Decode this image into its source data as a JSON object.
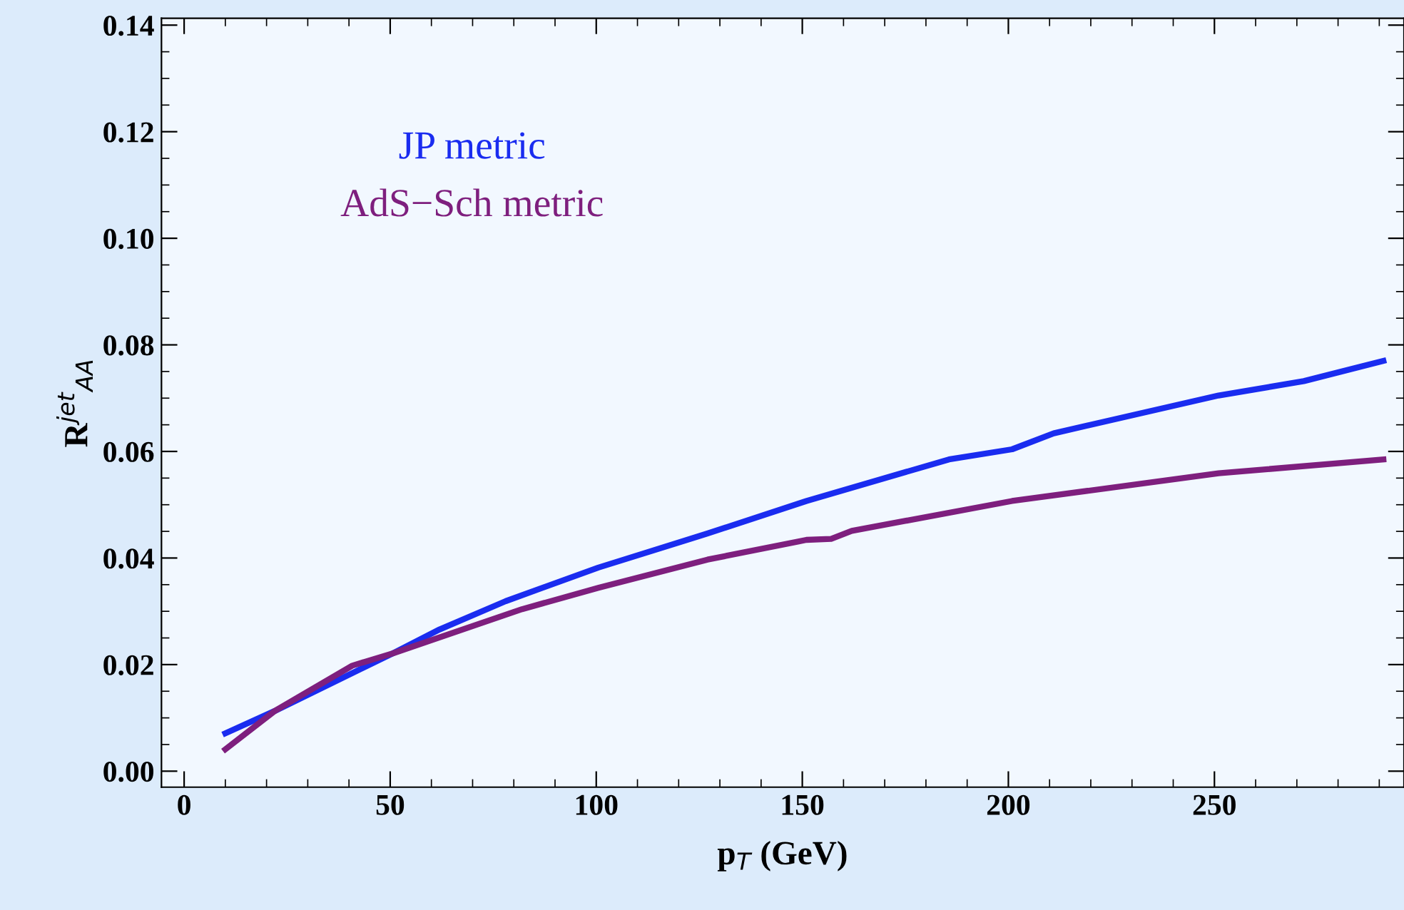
{
  "chart_data": {
    "type": "line",
    "xlabel": "p$_{T}$ (GeV)",
    "ylabel": "R$^{jet}$$_{AA}$",
    "xlim": [
      -5.5,
      296
    ],
    "ylim": [
      -0.003,
      0.1413
    ],
    "xticks": [
      0,
      50,
      100,
      150,
      200,
      250
    ],
    "yticks": [
      {
        "value": 0,
        "label": "0.00"
      },
      {
        "value": 0.02,
        "label": "0.02"
      },
      {
        "value": 0.04,
        "label": "0.04"
      },
      {
        "value": 0.06,
        "label": "0.06"
      },
      {
        "value": 0.08,
        "label": "0.08"
      },
      {
        "value": 0.1,
        "label": "0.10"
      },
      {
        "value": 0.12,
        "label": "0.12"
      },
      {
        "value": 0.14,
        "label": "0.14"
      }
    ],
    "grid": false,
    "legend": "top left",
    "marker": "none",
    "line_style": "solid",
    "series": [
      {
        "name": "JP metric",
        "color": "#1a2cf0",
        "x": [
          10,
          22,
          50.6,
          62,
          78,
          100.5,
          127,
          151,
          185.6,
          200.9,
          211,
          251,
          271.7,
          291
        ],
        "values": [
          0.0071,
          0.0113,
          0.0221,
          0.0266,
          0.0319,
          0.0382,
          0.0446,
          0.0507,
          0.0585,
          0.0604,
          0.0634,
          0.0705,
          0.0732,
          0.077
        ]
      },
      {
        "name": "AdS−Sch metric",
        "color": "#7e1f7e",
        "x": [
          10,
          22,
          40.8,
          50.6,
          82,
          100.5,
          127,
          151,
          157,
          162,
          200.9,
          251,
          291
        ],
        "values": [
          0.0041,
          0.0113,
          0.0198,
          0.0221,
          0.0304,
          0.0344,
          0.0397,
          0.0434,
          0.0436,
          0.0451,
          0.0507,
          0.0559,
          0.0585
        ]
      }
    ]
  }
}
